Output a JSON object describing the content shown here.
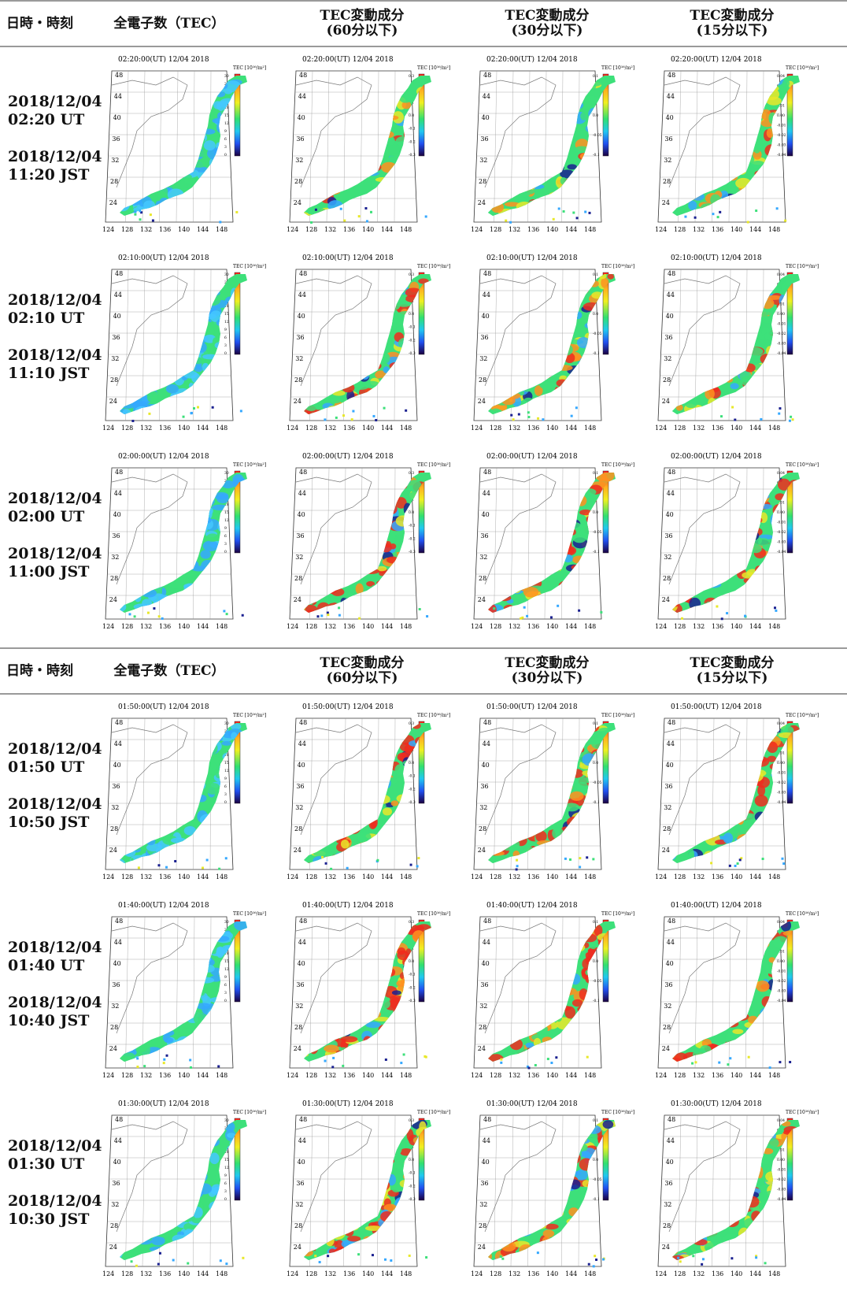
{
  "header": {
    "col_datetime": "日時・時刻",
    "col_tec": "全電子数（TEC）",
    "col_var": "TEC変動成分",
    "col_60": "(60分以下)",
    "col_30": "(30分以下)",
    "col_15": "(15分以下)"
  },
  "sections": [
    {
      "rows": [
        {
          "ut": "2018/12/04",
          "ut_time": "02:20 UT",
          "jst": "2018/12/04",
          "jst_time": "11:20 JST",
          "map_title": "02:20:00(UT)  12/04 2018"
        },
        {
          "ut": "2018/12/04",
          "ut_time": "02:10 UT",
          "jst": "2018/12/04",
          "jst_time": "11:10 JST",
          "map_title": "02:10:00(UT)  12/04 2018"
        },
        {
          "ut": "2018/12/04",
          "ut_time": "02:00 UT",
          "jst": "2018/12/04",
          "jst_time": "11:00 JST",
          "map_title": "02:00:00(UT)  12/04 2018"
        }
      ]
    },
    {
      "rows": [
        {
          "ut": "2018/12/04",
          "ut_time": "01:50 UT",
          "jst": "2018/12/04",
          "jst_time": "10:50 JST",
          "map_title": "01:50:00(UT)  12/04 2018"
        },
        {
          "ut": "2018/12/04",
          "ut_time": "01:40 UT",
          "jst": "2018/12/04",
          "jst_time": "10:40 JST",
          "map_title": "01:40:00(UT)  12/04 2018"
        },
        {
          "ut": "2018/12/04",
          "ut_time": "01:30 UT",
          "jst": "2018/12/04",
          "jst_time": "10:30 JST",
          "map_title": "01:30:00(UT)  12/04 2018"
        }
      ]
    }
  ],
  "map": {
    "unit_label": "TEC [10¹⁶/m²]",
    "lat_labels": [
      "48",
      "44",
      "40",
      "36",
      "32",
      "28",
      "24"
    ],
    "lon_labels": [
      "124",
      "128",
      "132",
      "136",
      "140",
      "144",
      "148"
    ],
    "cbar_tec": [
      "30",
      "27",
      "24",
      "21",
      "18",
      "15",
      "12",
      "9",
      "6",
      "3",
      "0"
    ],
    "cbar_60": [
      "0.3",
      "0.2",
      "0.1",
      "0.0",
      "-0.1",
      "-0.2",
      "-0.3"
    ],
    "cbar_30": [
      "0.1",
      "0.05",
      "0.0",
      "-0.05",
      "-0.1"
    ],
    "cbar_15": [
      "0.04",
      "0.03",
      "0.02",
      "0.01",
      "0.00",
      "-0.01",
      "-0.02",
      "-0.03",
      "-0.04"
    ]
  },
  "colors": {
    "rule": "#9a9a9a",
    "land_green": "#3de07a",
    "land_blue": "#35a8ff",
    "land_red": "#f02b1e",
    "land_yellow": "#e8e82a"
  }
}
